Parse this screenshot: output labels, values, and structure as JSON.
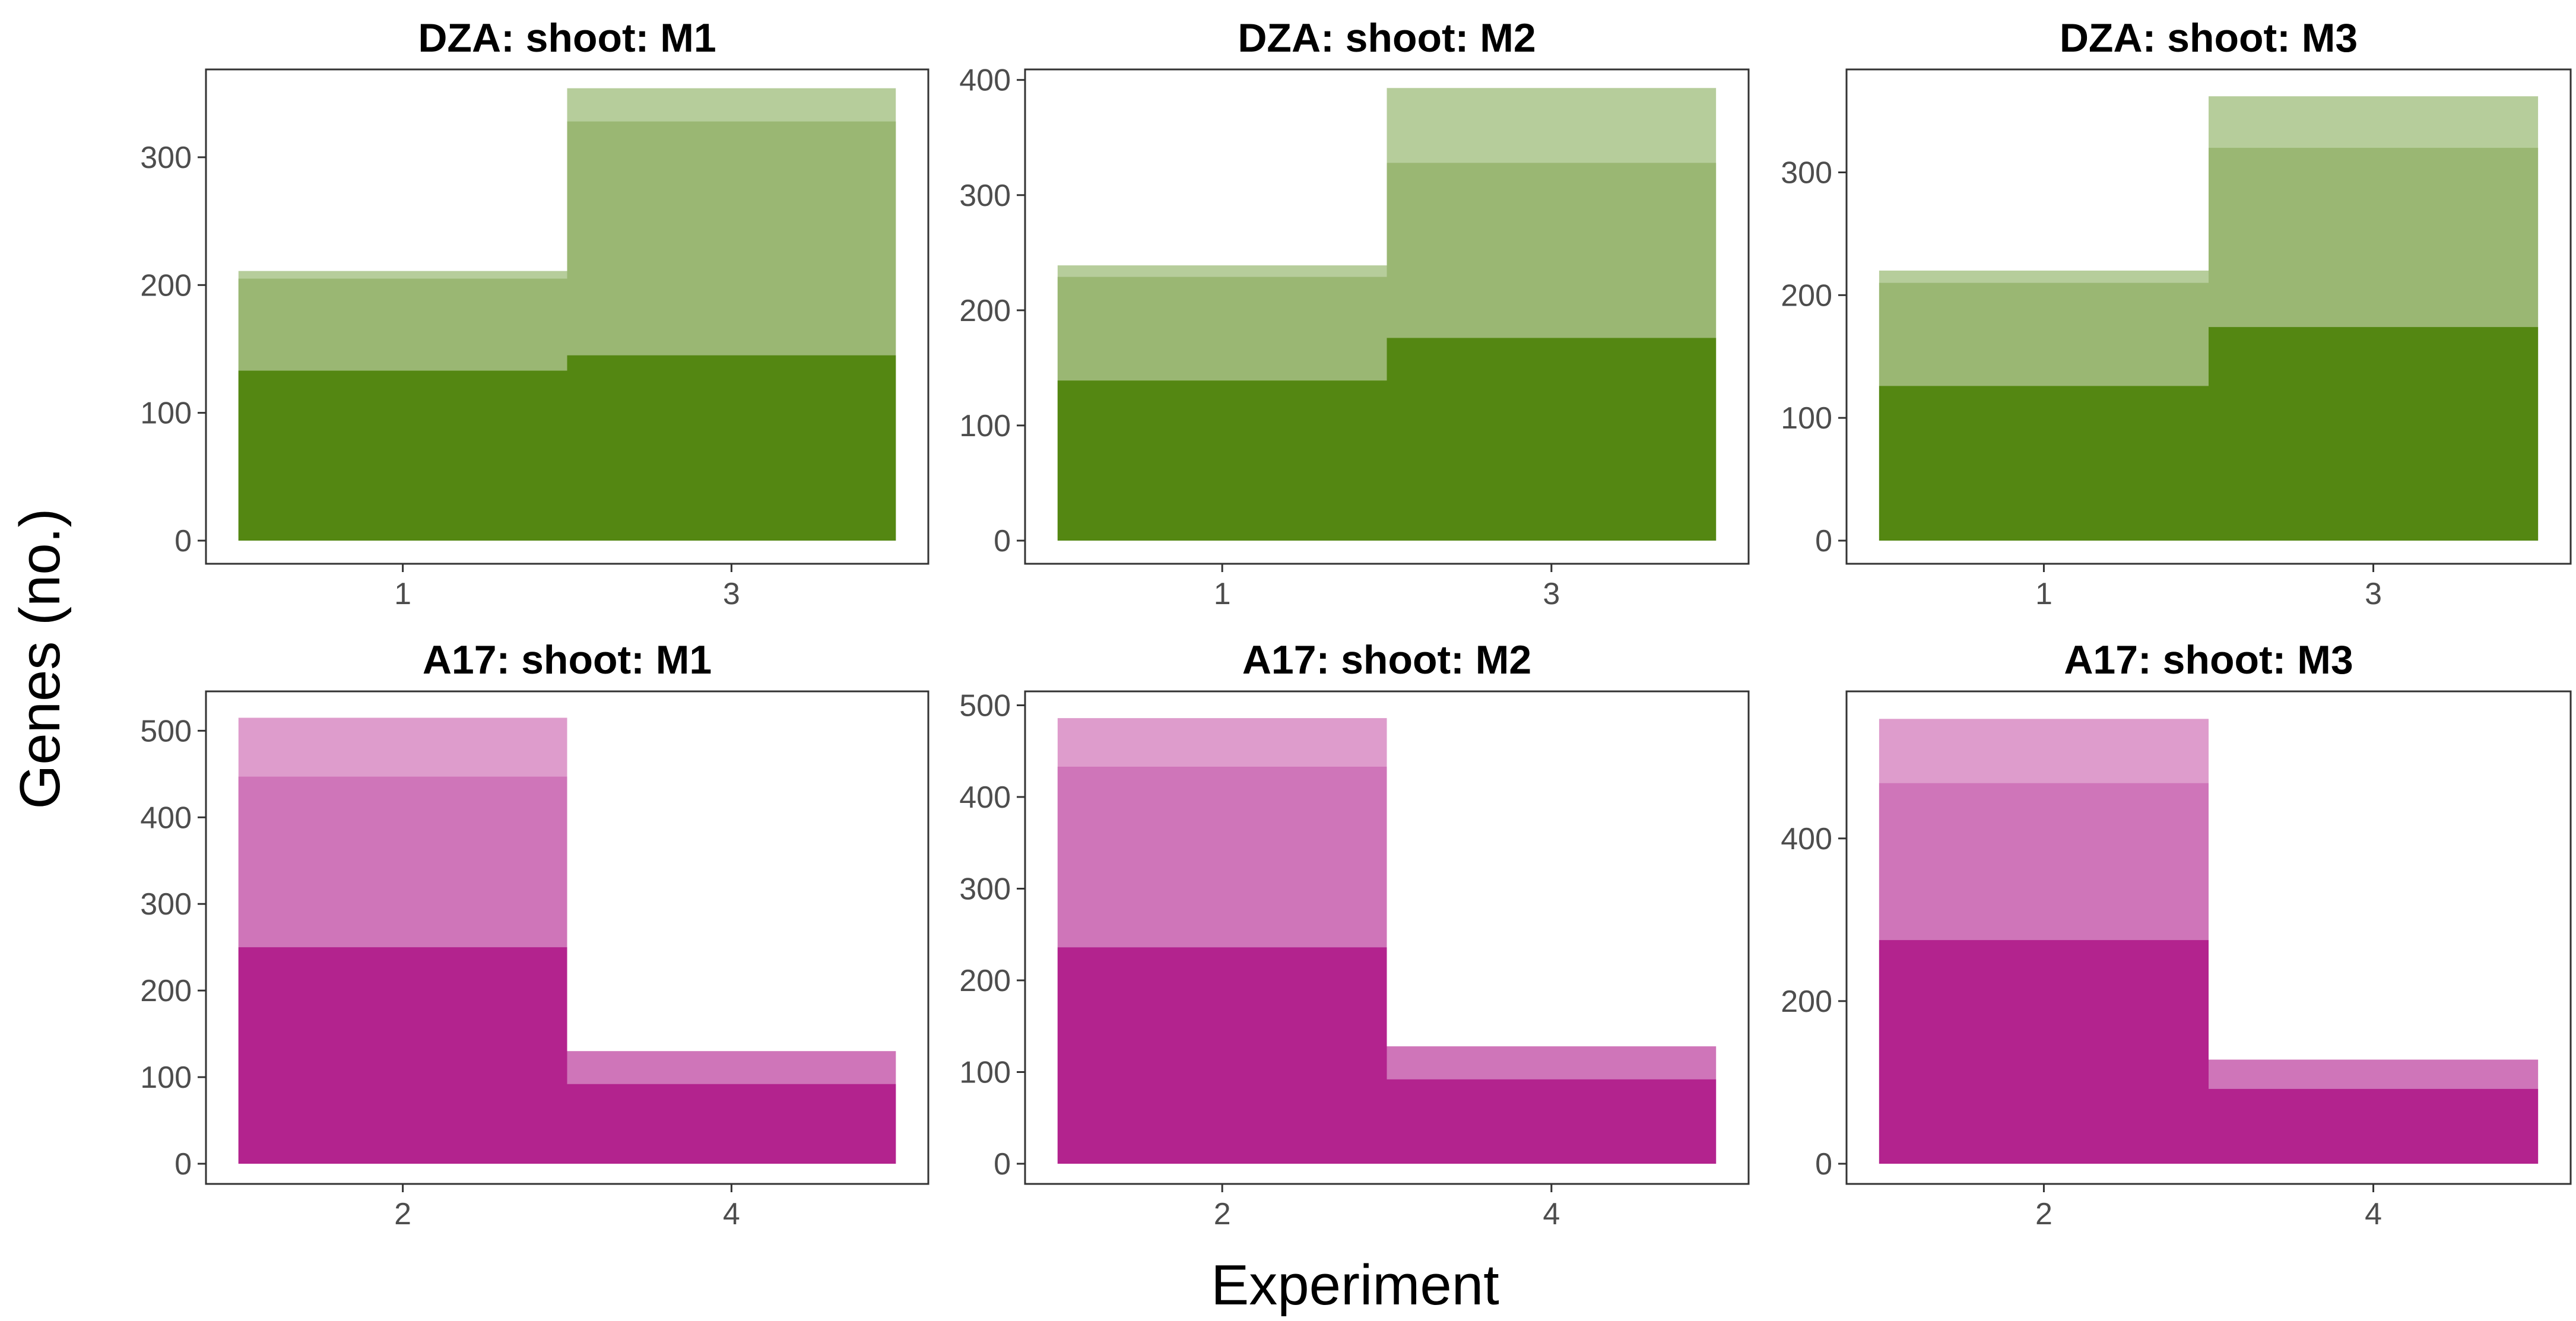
{
  "figure": {
    "xlabel": "Experiment",
    "ylabel": "Genes (no.)"
  },
  "colors": {
    "green_dark": "#548712",
    "green_mid": "#9ab773",
    "green_light": "#b6cd9b",
    "magenta_dark": "#b3238e",
    "magenta_mid": "#cf75b9",
    "magenta_light": "#de9ccc"
  },
  "chart_data": [
    {
      "type": "bar",
      "title": "DZA: shoot: M1",
      "color_scheme": "green",
      "categories": [
        "1",
        "3"
      ],
      "x_ticks": [
        "1",
        "3"
      ],
      "layers": [
        {
          "level": "total",
          "values": [
            211,
            354
          ]
        },
        {
          "level": "mid",
          "values": [
            205,
            328
          ]
        },
        {
          "level": "core",
          "values": [
            133,
            145
          ]
        }
      ],
      "ylim": [
        0,
        365
      ],
      "y_ticks": [
        0,
        100,
        200,
        300
      ]
    },
    {
      "type": "bar",
      "title": "DZA: shoot: M2",
      "color_scheme": "green",
      "categories": [
        "1",
        "3"
      ],
      "x_ticks": [
        "1",
        "3"
      ],
      "layers": [
        {
          "level": "total",
          "values": [
            239,
            393
          ]
        },
        {
          "level": "mid",
          "values": [
            229,
            328
          ]
        },
        {
          "level": "core",
          "values": [
            139,
            176
          ]
        }
      ],
      "ylim": [
        0,
        405
      ],
      "y_ticks": [
        0,
        100,
        200,
        300,
        400
      ]
    },
    {
      "type": "bar",
      "title": "DZA: shoot: M3",
      "color_scheme": "green",
      "categories": [
        "1",
        "3"
      ],
      "x_ticks": [
        "1",
        "3"
      ],
      "layers": [
        {
          "level": "total",
          "values": [
            220,
            362
          ]
        },
        {
          "level": "mid",
          "values": [
            210,
            320
          ]
        },
        {
          "level": "core",
          "values": [
            126,
            174
          ]
        }
      ],
      "ylim": [
        0,
        380
      ],
      "y_ticks": [
        0,
        100,
        200,
        300
      ]
    },
    {
      "type": "bar",
      "title": "A17: shoot: M1",
      "color_scheme": "magenta",
      "categories": [
        "2",
        "4"
      ],
      "x_ticks": [
        "2",
        "4"
      ],
      "layers": [
        {
          "level": "total",
          "values": [
            515,
            130
          ]
        },
        {
          "level": "mid",
          "values": [
            447,
            130
          ]
        },
        {
          "level": "core",
          "values": [
            250,
            92
          ]
        }
      ],
      "ylim": [
        0,
        540
      ],
      "y_ticks": [
        0,
        100,
        200,
        300,
        400,
        500
      ]
    },
    {
      "type": "bar",
      "title": "A17: shoot: M2",
      "color_scheme": "magenta",
      "categories": [
        "2",
        "4"
      ],
      "x_ticks": [
        "2",
        "4"
      ],
      "layers": [
        {
          "level": "total",
          "values": [
            486,
            128
          ]
        },
        {
          "level": "mid",
          "values": [
            433,
            128
          ]
        },
        {
          "level": "core",
          "values": [
            236,
            92
          ]
        }
      ],
      "ylim": [
        0,
        510
      ],
      "y_ticks": [
        0,
        100,
        200,
        300,
        400,
        500
      ]
    },
    {
      "type": "bar",
      "title": "A17: shoot: M3",
      "color_scheme": "magenta",
      "categories": [
        "2",
        "4"
      ],
      "x_ticks": [
        "2",
        "4"
      ],
      "layers": [
        {
          "level": "total",
          "values": [
            547,
            128
          ]
        },
        {
          "level": "mid",
          "values": [
            468,
            128
          ]
        },
        {
          "level": "core",
          "values": [
            275,
            92
          ]
        }
      ],
      "ylim": [
        0,
        575
      ],
      "y_ticks": [
        0,
        200,
        400
      ]
    }
  ]
}
